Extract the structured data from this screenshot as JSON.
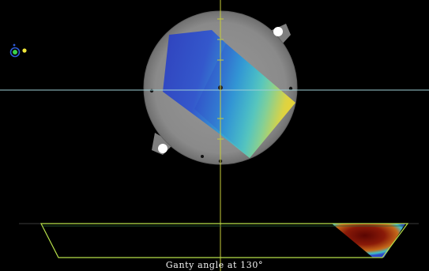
{
  "view": {
    "caption": "Ganty angle at 130°",
    "colors": {
      "background": "#000000",
      "phantom": "#8e8e8e",
      "crosshair_vertical": "#c8cc3a",
      "crosshair_horizontal": "#9ecfd6",
      "dose_low": "#2d46c8",
      "dose_mid": "#31b8d6",
      "dose_high": "#e0d23a",
      "profile_outline": "#b7e04a",
      "profile_hot": "#7a0f05"
    },
    "orientation_marker": {
      "icon": "orientation-marker-icon",
      "colors": [
        "#2e5bd6",
        "#3ad24a",
        "#f2e83a"
      ]
    }
  }
}
